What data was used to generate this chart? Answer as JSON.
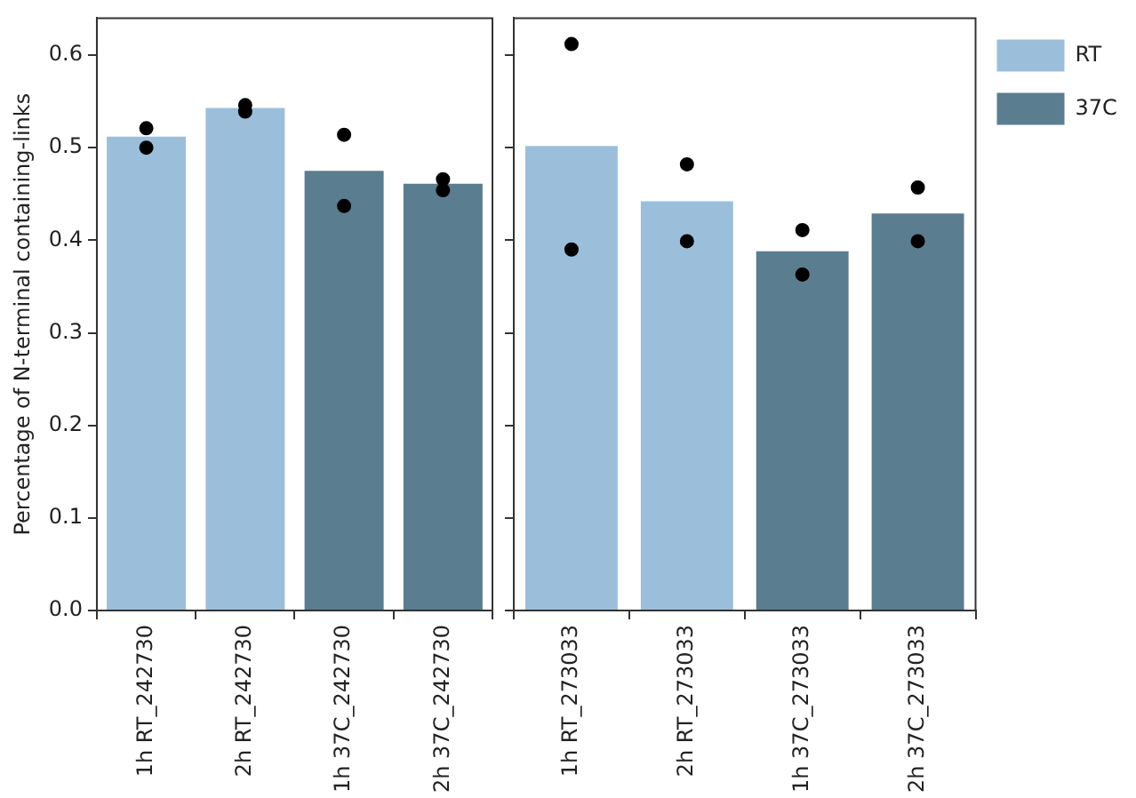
{
  "chart_data": [
    {
      "type": "bar",
      "ylabel": "Percentage of N-terminal containing-links",
      "categories": [
        "1h RT_242730",
        "2h RT_242730",
        "1h 37C_242730",
        "2h 37C_242730"
      ],
      "ylim": [
        0,
        0.64
      ],
      "yticks": [
        {
          "value": 0,
          "label": "0.0"
        },
        0.1,
        0.2,
        0.3,
        0.4,
        0.5,
        0.6
      ],
      "legend": false,
      "grid": false,
      "series": [
        {
          "color": "#9bbfdb",
          "values": [
            0.512,
            0.543,
            null,
            null
          ]
        },
        {
          "color": "#5a7d8f",
          "values": [
            null,
            null,
            0.475,
            0.461
          ]
        },
        {
          "type": "scatter",
          "color": "#000000",
          "marker": "circle",
          "x": [
            "1h RT_242730",
            "1h RT_242730",
            "2h RT_242730",
            "2h RT_242730",
            "1h 37C_242730",
            "1h 37C_242730",
            "2h 37C_242730",
            "2h 37C_242730"
          ],
          "values": [
            0.521,
            0.5,
            0.546,
            0.539,
            0.514,
            0.437,
            0.466,
            0.454
          ]
        }
      ]
    },
    {
      "type": "bar",
      "categories": [
        "1h RT_273033",
        "2h RT_273033",
        "1h 37C_273033",
        "2h 37C_273033"
      ],
      "ylim": [
        0,
        0.64
      ],
      "yticks": [
        {
          "value": 0,
          "label": null
        },
        {
          "value": 0.1,
          "label": null
        },
        {
          "value": 0.2,
          "label": null
        },
        {
          "value": 0.3,
          "label": null
        },
        {
          "value": 0.4,
          "label": null
        },
        {
          "value": 0.5,
          "label": null
        },
        {
          "value": 0.6,
          "label": null
        }
      ],
      "tick_labels": "x",
      "legend": "top right",
      "grid": false,
      "series": [
        {
          "name": "RT",
          "color": "#9bbfdb",
          "values": [
            0.502,
            0.442,
            null,
            null
          ]
        },
        {
          "name": "37C",
          "color": "#5a7d8f",
          "values": [
            null,
            null,
            0.388,
            0.429
          ]
        },
        {
          "type": "scatter",
          "color": "#000000",
          "marker": "circle",
          "x": [
            "1h RT_273033",
            "1h RT_273033",
            "2h RT_273033",
            "2h RT_273033",
            "1h 37C_273033",
            "1h 37C_273033",
            "2h 37C_273033",
            "2h 37C_273033"
          ],
          "values": [
            0.612,
            0.39,
            0.482,
            0.399,
            0.411,
            0.363,
            0.457,
            0.399
          ]
        }
      ]
    }
  ]
}
